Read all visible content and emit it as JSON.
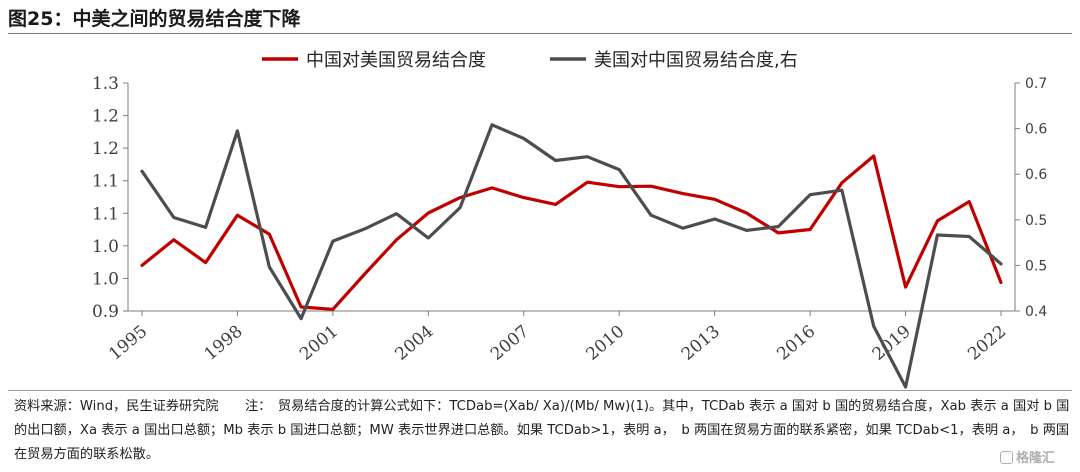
{
  "header": {
    "title": "图25：中美之间的贸易结合度下降"
  },
  "chart_data": {
    "type": "line",
    "x": [
      1995,
      1996,
      1997,
      1998,
      1999,
      2000,
      2001,
      2002,
      2003,
      2004,
      2005,
      2006,
      2007,
      2008,
      2009,
      2010,
      2011,
      2012,
      2013,
      2014,
      2015,
      2016,
      2017,
      2018,
      2019,
      2020,
      2021,
      2022
    ],
    "x_ticks": [
      "1995",
      "1998",
      "2001",
      "2004",
      "2007",
      "2010",
      "2013",
      "2016",
      "2019",
      "2022"
    ],
    "y_left_ticks": [
      "0.9",
      "1.0",
      "1.0",
      "1.1",
      "1.1",
      "1.2",
      "1.2",
      "1.3"
    ],
    "y_left_range": [
      0.9,
      1.3
    ],
    "y_right_ticks": [
      "0.4",
      "0.5",
      "0.5",
      "0.6",
      "0.6",
      "0.7"
    ],
    "y_right_range": [
      0.4,
      0.7
    ],
    "series": [
      {
        "name": "中国对美国贸易结合度",
        "axis": "left",
        "color": "#c00000",
        "values": [
          0.98,
          1.025,
          0.985,
          1.068,
          1.035,
          0.907,
          0.903,
          0.965,
          1.025,
          1.072,
          1.099,
          1.116,
          1.099,
          1.087,
          1.126,
          1.118,
          1.119,
          1.106,
          1.096,
          1.072,
          1.037,
          1.043,
          1.125,
          1.172,
          0.942,
          1.058,
          1.092,
          0.95
        ]
      },
      {
        "name": "美国对中国贸易结合度,右",
        "axis": "right",
        "color": "#4d4d4d",
        "values": [
          0.584,
          0.523,
          0.51,
          0.637,
          0.458,
          0.39,
          0.492,
          0.508,
          0.528,
          0.496,
          0.536,
          0.645,
          0.627,
          0.598,
          0.603,
          0.586,
          0.526,
          0.509,
          0.521,
          0.506,
          0.511,
          0.553,
          0.559,
          0.38,
          0.3,
          0.5,
          0.498,
          0.462
        ]
      }
    ],
    "legend_position": "top",
    "grid": false
  },
  "footer": {
    "source_note": "资料来源：Wind，民生证券研究院　　注：　贸易结合度的计算公式如下：TCDab=(Xab/ Xa)/(Mb/ Mw)(1)。其中，TCDab 表示 a 国对 b 国的贸易结合度，Xab 表示 a 国对 b 国的出口额，Xa 表示 a 国出口总额；Mb 表示 b 国进口总额；MW 表示世界进口总额。如果 TCDab>1，表明 a，　b 两国在贸易方面的联系紧密，如果 TCDab<1，表明 a，　b 两国在贸易方面的联系松散。",
    "watermark": "格隆汇"
  }
}
